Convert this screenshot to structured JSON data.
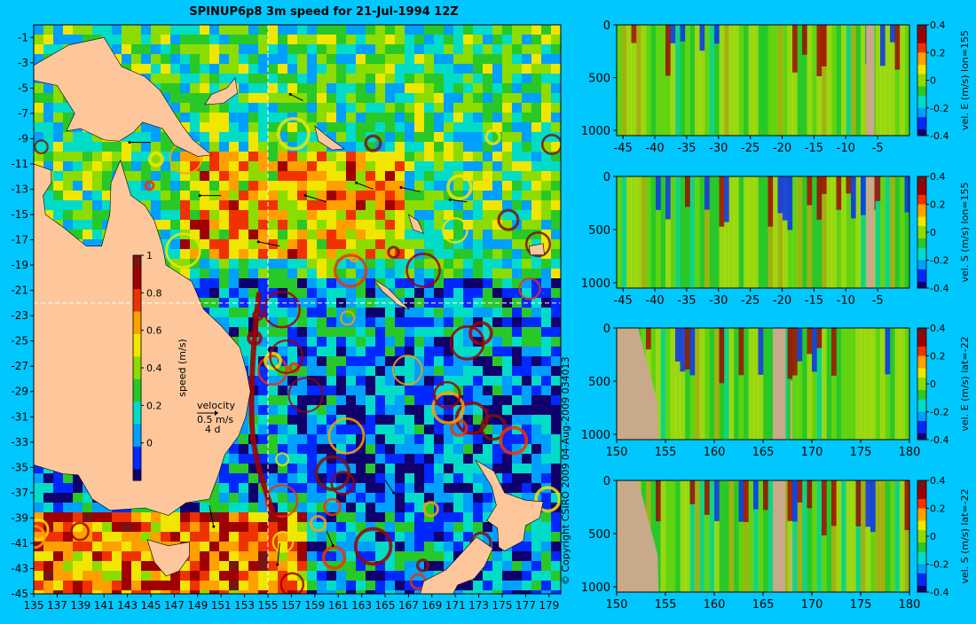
{
  "title": "SPINUP6p8 3m speed for 21-Jul-1994 12Z",
  "copyright": "© Copyright CSIRO 2009   04-Aug-2009 034013",
  "colors": {
    "background": "#00c8ff",
    "land": "#fdc79b",
    "section_land": "#c8a98a",
    "crosshair": "#ffffff",
    "colormap": [
      "#10006e",
      "#0028ff",
      "#00a0ff",
      "#00dcc8",
      "#28c828",
      "#8cdc00",
      "#f0e600",
      "#ffa000",
      "#f03200",
      "#a00000",
      "#781414"
    ]
  },
  "chart_data": [
    {
      "type": "heatmap",
      "name": "map",
      "variable": "speed",
      "xlim": [
        135,
        180
      ],
      "ylim": [
        -45,
        0
      ],
      "xticks": [
        "135",
        "137",
        "139",
        "141",
        "143",
        "145",
        "147",
        "149",
        "151",
        "153",
        "155",
        "157",
        "159",
        "161",
        "163",
        "165",
        "167",
        "169",
        "171",
        "173",
        "175",
        "177",
        "179"
      ],
      "yticks": [
        "-1",
        "-3",
        "-5",
        "-7",
        "-9",
        "-11",
        "-13",
        "-15",
        "-17",
        "-19",
        "-21",
        "-23",
        "-25",
        "-27",
        "-29",
        "-31",
        "-33",
        "-35",
        "-37",
        "-39",
        "-41",
        "-43",
        "-45"
      ],
      "crosshair": {
        "lon": 155,
        "lat": -22
      },
      "colorbar": {
        "label": "speed (m/s)",
        "range": [
          -0.2,
          1
        ],
        "ticks": [
          "1",
          "0.8",
          "0.6",
          "0.4",
          "0.2",
          "0"
        ]
      },
      "velocity_legend": {
        "title": "velocity",
        "scale": "0.5 m/s",
        "time": "4 d"
      }
    },
    {
      "type": "heatmap",
      "name": "section-1",
      "colorbar_label": "vel. E (m/s) lon=155",
      "x_axis": "lat",
      "xlim": [
        -46,
        0
      ],
      "xticks": [
        "-45",
        "-40",
        "-35",
        "-30",
        "-25",
        "-20",
        "-15",
        "-10",
        "-5"
      ],
      "ylim": [
        1050,
        0
      ],
      "yticks": [
        "0",
        "500",
        "1000"
      ],
      "colorbar_range": [
        -0.4,
        0.4
      ],
      "colorbar_ticks": [
        "0.4",
        "0.2",
        "0",
        "-0.2",
        "-0.4"
      ]
    },
    {
      "type": "heatmap",
      "name": "section-2",
      "colorbar_label": "vel. S (m/s) lon=155",
      "x_axis": "lat",
      "xlim": [
        -46,
        0
      ],
      "xticks": [
        "-45",
        "-40",
        "-35",
        "-30",
        "-25",
        "-20",
        "-15",
        "-10",
        "-5"
      ],
      "ylim": [
        1050,
        0
      ],
      "yticks": [
        "0",
        "500",
        "1000"
      ],
      "colorbar_range": [
        -0.4,
        0.4
      ],
      "colorbar_ticks": [
        "0.4",
        "0.2",
        "0",
        "-0.2",
        "-0.4"
      ]
    },
    {
      "type": "heatmap",
      "name": "section-3",
      "colorbar_label": "vel. E (m/s) lat=-22",
      "x_axis": "lon",
      "xlim": [
        150,
        180
      ],
      "xticks": [
        "150",
        "155",
        "160",
        "165",
        "170",
        "175",
        "180"
      ],
      "ylim": [
        1050,
        0
      ],
      "yticks": [
        "0",
        "500",
        "1000"
      ],
      "colorbar_range": [
        -0.4,
        0.4
      ],
      "colorbar_ticks": [
        "0.4",
        "0.2",
        "0",
        "-0.2",
        "-0.4"
      ]
    },
    {
      "type": "heatmap",
      "name": "section-4",
      "colorbar_label": "vel. S (m/s) lat=-22",
      "x_axis": "lon",
      "xlim": [
        150,
        180
      ],
      "xticks": [
        "150",
        "155",
        "160",
        "165",
        "170",
        "175",
        "180"
      ],
      "ylim": [
        1050,
        0
      ],
      "yticks": [
        "0",
        "500",
        "1000"
      ],
      "colorbar_range": [
        -0.4,
        0.4
      ],
      "colorbar_ticks": [
        "0.4",
        "0.2",
        "0",
        "-0.2",
        "-0.4"
      ]
    }
  ]
}
